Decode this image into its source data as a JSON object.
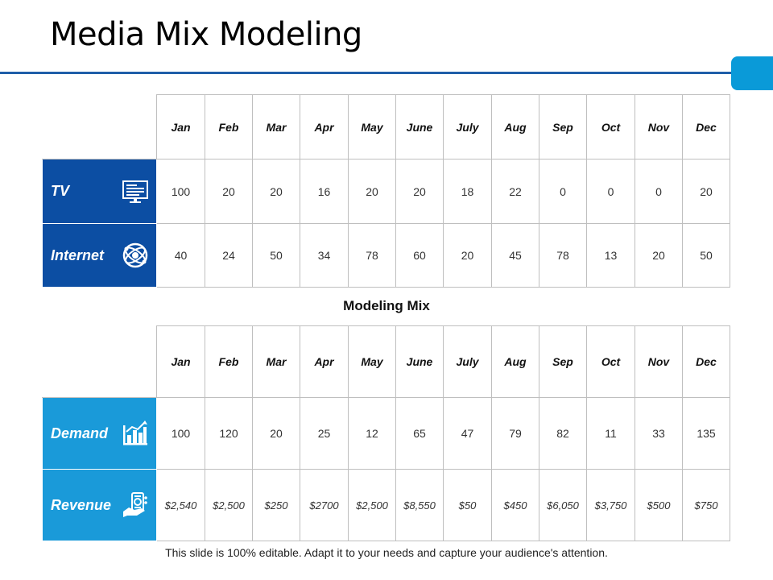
{
  "slide": {
    "title": "Media Mix Modeling",
    "footer": "This slide is 100% editable. Adapt it to your needs and capture your audience's attention."
  },
  "colors": {
    "rule": "#1f5ea8",
    "dark_blue": "#0c4ea3",
    "light_blue": "#1a9ad9",
    "tab": "#0a9ad8"
  },
  "table1": {
    "months": [
      "Jan",
      "Feb",
      "Mar",
      "Apr",
      "May",
      "June",
      "July",
      "Aug",
      "Sep",
      "Oct",
      "Nov",
      "Dec"
    ],
    "rows": [
      {
        "label": "TV",
        "icon": "monitor-icon",
        "values": [
          "100",
          "20",
          "20",
          "16",
          "20",
          "20",
          "18",
          "22",
          "0",
          "0",
          "0",
          "20"
        ]
      },
      {
        "label": "Internet",
        "icon": "globe-icon",
        "values": [
          "40",
          "24",
          "50",
          "34",
          "78",
          "60",
          "20",
          "45",
          "78",
          "13",
          "20",
          "50"
        ]
      }
    ]
  },
  "section_title": "Modeling Mix",
  "table2": {
    "months": [
      "Jan",
      "Feb",
      "Mar",
      "Apr",
      "May",
      "June",
      "July",
      "Aug",
      "Sep",
      "Oct",
      "Nov",
      "Dec"
    ],
    "rows": [
      {
        "label": "Demand",
        "icon": "bar-chart-icon",
        "values": [
          "100",
          "120",
          "20",
          "25",
          "12",
          "65",
          "47",
          "79",
          "82",
          "11",
          "33",
          "135"
        ]
      },
      {
        "label": "Revenue",
        "icon": "money-hand-icon",
        "values": [
          "$2,540",
          "$2,500",
          "$250",
          "$2700",
          "$2,500",
          "$8,550",
          "$50",
          "$450",
          "$6,050",
          "$3,750",
          "$500",
          "$750"
        ]
      }
    ]
  }
}
